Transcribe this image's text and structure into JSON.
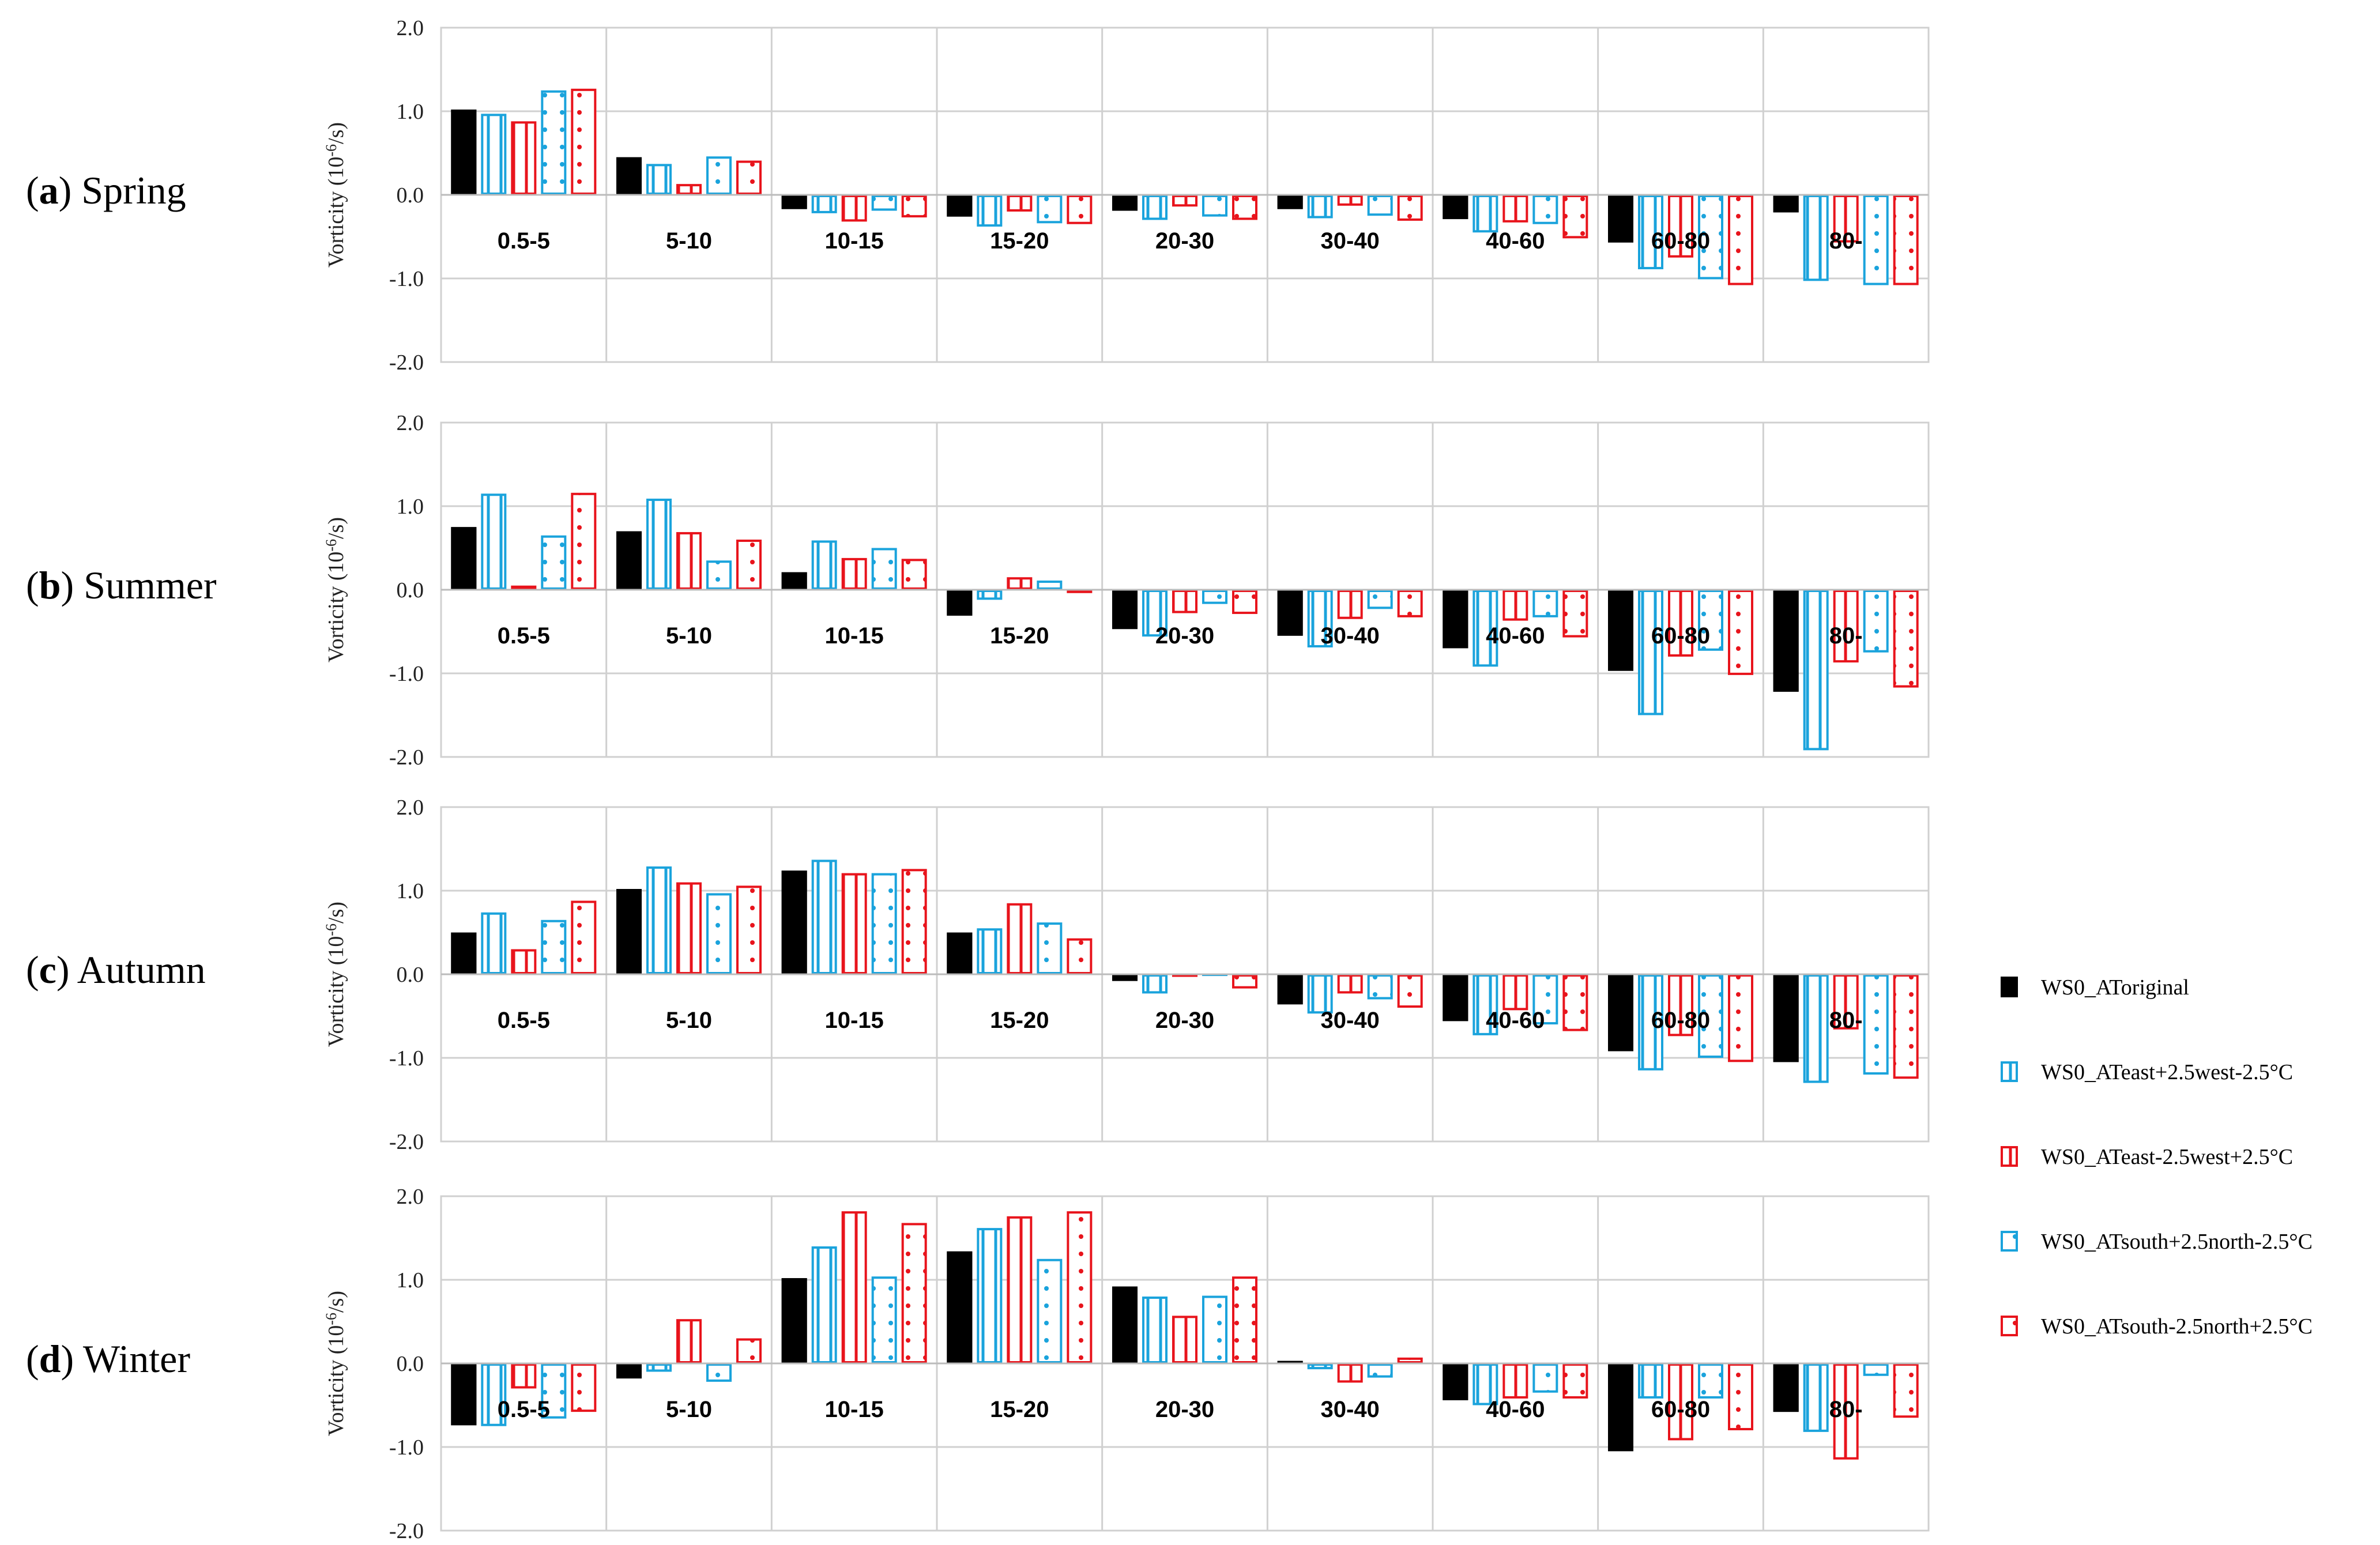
{
  "chart_data": {
    "type": "bar",
    "categories": [
      "0.5-5",
      "5-10",
      "10-15",
      "15-20",
      "20-30",
      "30-40",
      "40-60",
      "60-80",
      "80-"
    ],
    "ylim": [
      -2.0,
      2.0
    ],
    "yticks": [
      "2.0",
      "1.0",
      "0.0",
      "-1.0",
      "-2.0"
    ],
    "ylabel_main": "Vorticity (10",
    "ylabel_sup": "-6",
    "ylabel_end": "/s)",
    "grid": true,
    "legend_position": "right",
    "series": [
      {
        "name": "WS0_ATorigina​l",
        "color": "#000000",
        "pattern": "solid"
      },
      {
        "name": "WS0_ATeast+2.5west-2.5°C",
        "color": "#1aa3dc",
        "pattern": "vertical"
      },
      {
        "name": "WS0_ATeast-2.5west+2.5°C",
        "color": "#e8141c",
        "pattern": "vertical"
      },
      {
        "name": "WS0_ATsouth+2.5north-2.5°C",
        "color": "#1aa3dc",
        "pattern": "dots"
      },
      {
        "name": "WS0_ATsouth-2.5north+2.5°C",
        "color": "#e8141c",
        "pattern": "dots"
      }
    ],
    "panels": [
      {
        "letter": "a",
        "season": "Spring",
        "values": [
          [
            1.02,
            0.45,
            -0.17,
            -0.26,
            -0.19,
            -0.17,
            -0.29,
            -0.57,
            -0.21
          ],
          [
            0.97,
            0.37,
            -0.22,
            -0.38,
            -0.3,
            -0.28,
            -0.45,
            -0.89,
            -1.03
          ],
          [
            0.88,
            0.13,
            -0.32,
            -0.2,
            -0.14,
            -0.13,
            -0.33,
            -0.75,
            -0.57
          ],
          [
            1.25,
            0.46,
            -0.19,
            -0.34,
            -0.26,
            -0.25,
            -0.35,
            -1.01,
            -1.08
          ],
          [
            1.27,
            0.41,
            -0.27,
            -0.35,
            -0.3,
            -0.31,
            -0.52,
            -1.08,
            -1.08
          ]
        ]
      },
      {
        "letter": "b",
        "season": "Summer",
        "values": [
          [
            0.75,
            0.7,
            0.21,
            -0.31,
            -0.47,
            -0.55,
            -0.7,
            -0.97,
            -1.22
          ],
          [
            1.15,
            1.09,
            0.59,
            -0.12,
            -0.56,
            -0.69,
            -0.92,
            -1.5,
            -1.92
          ],
          [
            0.05,
            0.69,
            0.38,
            0.15,
            -0.28,
            -0.35,
            -0.37,
            -0.8,
            -0.87
          ],
          [
            0.65,
            0.35,
            0.5,
            0.11,
            -0.17,
            -0.23,
            -0.33,
            -0.73,
            -0.75
          ],
          [
            1.16,
            0.6,
            0.37,
            -0.04,
            -0.29,
            -0.33,
            -0.57,
            -1.02,
            -1.17
          ]
        ]
      },
      {
        "letter": "c",
        "season": "Autumn",
        "values": [
          [
            0.5,
            1.02,
            1.24,
            0.5,
            -0.08,
            -0.36,
            -0.56,
            -0.92,
            -1.05
          ],
          [
            0.74,
            1.29,
            1.37,
            0.55,
            -0.23,
            -0.47,
            -0.73,
            -1.15,
            -1.3
          ],
          [
            0.3,
            1.1,
            1.21,
            0.85,
            0.0,
            -0.23,
            -0.43,
            -0.74,
            -0.66
          ],
          [
            0.65,
            0.97,
            1.21,
            0.62,
            0.01,
            -0.3,
            -0.6,
            -1.0,
            -1.2
          ],
          [
            0.88,
            1.06,
            1.26,
            0.43,
            -0.17,
            -0.4,
            -0.68,
            -1.05,
            -1.25
          ]
        ]
      },
      {
        "letter": "d",
        "season": "Winter",
        "values": [
          [
            -0.74,
            -0.18,
            1.02,
            1.34,
            0.92,
            0.03,
            -0.44,
            -1.05,
            -0.58
          ],
          [
            -0.75,
            -0.1,
            1.4,
            1.62,
            0.8,
            -0.07,
            -0.5,
            -0.42,
            -0.82
          ],
          [
            -0.3,
            0.53,
            1.82,
            1.76,
            0.57,
            -0.23,
            -0.42,
            -0.92,
            -1.15
          ],
          [
            -0.66,
            -0.22,
            1.04,
            1.25,
            0.81,
            -0.17,
            -0.35,
            -0.42,
            -0.15
          ],
          [
            -0.58,
            0.3,
            1.68,
            1.82,
            1.04,
            0.07,
            -0.42,
            -0.8,
            -0.65
          ]
        ]
      }
    ]
  }
}
